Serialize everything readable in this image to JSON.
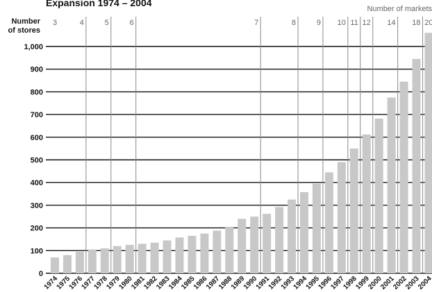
{
  "chart_data": {
    "type": "bar",
    "title": "Expansion 1974 – 2004",
    "ylabel": "Number of stores",
    "secondary_axis_label": "Number of markets",
    "ylim": [
      0,
      1100
    ],
    "y_ticks": [
      "0",
      "100",
      "200",
      "300",
      "400",
      "500",
      "600",
      "700",
      "800",
      "900",
      "1,000"
    ],
    "y_tick_values": [
      0,
      100,
      200,
      300,
      400,
      500,
      600,
      700,
      800,
      900,
      1000
    ],
    "categories": [
      "1974",
      "1975",
      "1976",
      "1977",
      "1978",
      "1979",
      "1980",
      "1981",
      "1982",
      "1983",
      "1984",
      "1985",
      "1986",
      "1987",
      "1988",
      "1989",
      "1990",
      "1991",
      "1992",
      "1993",
      "1994",
      "1995",
      "1996",
      "1997",
      "1998",
      "1999",
      "2000",
      "2001",
      "2002",
      "2003",
      "2004"
    ],
    "values": [
      70,
      80,
      95,
      105,
      110,
      120,
      125,
      130,
      135,
      145,
      158,
      165,
      175,
      188,
      205,
      240,
      250,
      262,
      292,
      325,
      358,
      395,
      445,
      490,
      550,
      612,
      682,
      775,
      845,
      945,
      1060
    ],
    "bar_color": "#c8c8c8",
    "market_markers": [
      {
        "count": "3",
        "year_index": 0
      },
      {
        "count": "4",
        "year_index": 2
      },
      {
        "count": "5",
        "year_index": 4
      },
      {
        "count": "6",
        "year_index": 6
      },
      {
        "count": "7",
        "year_index": 16
      },
      {
        "count": "8",
        "year_index": 19
      },
      {
        "count": "9",
        "year_index": 21
      },
      {
        "count": "10",
        "year_index": 23
      },
      {
        "count": "11",
        "year_index": 24
      },
      {
        "count": "12",
        "year_index": 25
      },
      {
        "count": "14",
        "year_index": 27
      },
      {
        "count": "18",
        "year_index": 29
      },
      {
        "count": "20",
        "year_index": 30
      }
    ]
  }
}
